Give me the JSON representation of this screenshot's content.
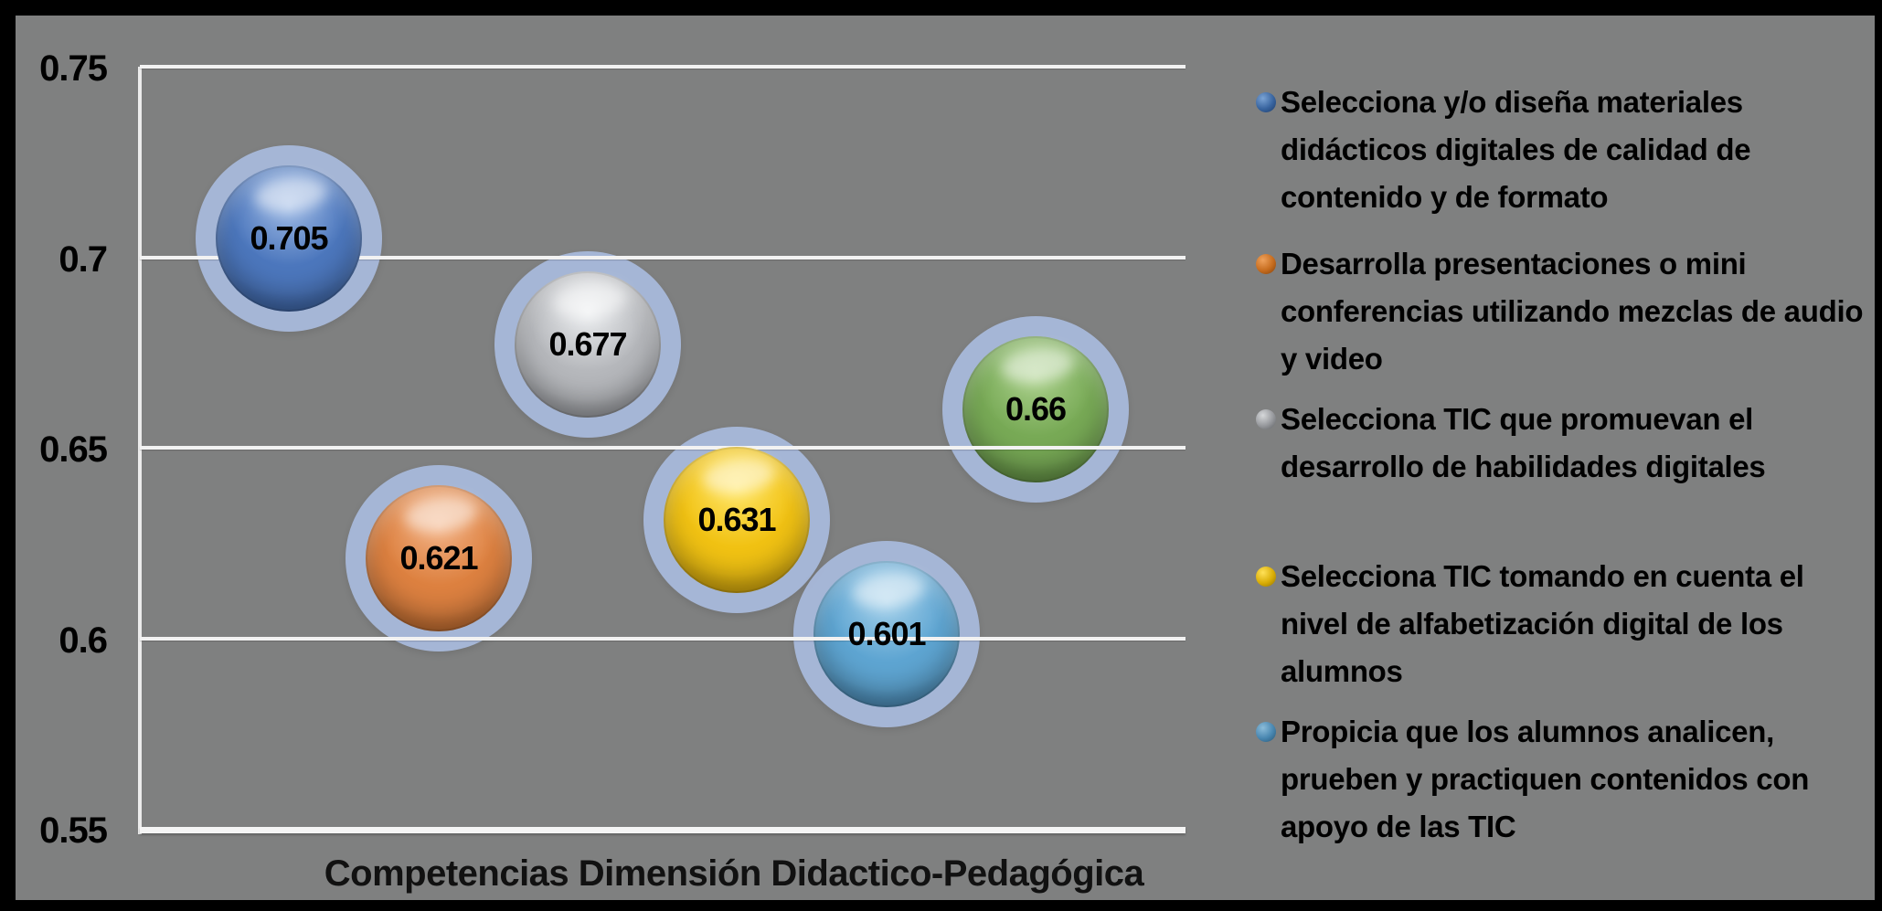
{
  "frame": {
    "background_color": "#7f8080",
    "border_color": "#000000",
    "gridline_color": "#f2f2f2",
    "halo_color": "#a8b8da"
  },
  "chart_data": {
    "type": "bubble",
    "title": "",
    "xlabel": "Competencias Dimensión Didactico-Pedagógica",
    "ylabel": "",
    "ylim": [
      0.55,
      0.75
    ],
    "grid": true,
    "legend_position": "right",
    "yticks": [
      {
        "label": "0.75",
        "value": 0.75
      },
      {
        "label": "0.7",
        "value": 0.7
      },
      {
        "label": "0.65",
        "value": 0.65
      },
      {
        "label": "0.6",
        "value": 0.6
      },
      {
        "label": "0.55",
        "value": 0.55
      }
    ],
    "series": [
      {
        "name": "Selecciona y/o diseña materiales didácticos digitales de calidad de contenido y de formato",
        "x": 1,
        "value": 0.705,
        "label": "0.705",
        "color": "#4c77bd",
        "color_light": "#9db9e4",
        "color_dark": "#2f5490"
      },
      {
        "name": "Desarrolla presentaciones o mini conferencias utilizando mezclas de audio y video",
        "x": 2,
        "value": 0.621,
        "label": "0.621",
        "color": "#dd8140",
        "color_light": "#f2b184",
        "color_dark": "#a8591f"
      },
      {
        "name": "Selecciona TIC que promuevan el desarrollo de habilidades digitales",
        "x": 3,
        "value": 0.677,
        "label": "0.677",
        "color": "#b6b8bc",
        "color_light": "#eceef0",
        "color_dark": "#828489"
      },
      {
        "name": "Selecciona TIC tomando en cuenta el nivel de alfabetización digital de los alumnos",
        "x": 4,
        "value": 0.631,
        "label": "0.631",
        "color": "#f1c213",
        "color_light": "#ffe566",
        "color_dark": "#bb8f06"
      },
      {
        "name": "Propicia que los alumnos analicen, prueben y practiquen contenidos con apoyo de las TIC",
        "x": 5,
        "value": 0.601,
        "label": "0.601",
        "color": "#5ea5d2",
        "color_light": "#a4d0ea",
        "color_dark": "#376f99"
      },
      {
        "name": "",
        "x": 6,
        "value": 0.66,
        "label": "0.66",
        "color": "#78aa56",
        "color_light": "#a9cf8a",
        "color_dark": "#4e7a32"
      }
    ]
  },
  "legend": {
    "items": [
      {
        "label": "Selecciona y/o diseña materiales didácticos digitales de calidad de contenido y de formato",
        "color": "#38649f",
        "color_light": "#7ba3d4",
        "color_dark": "#1d3a66"
      },
      {
        "label": "Desarrolla presentaciones o mini conferencias utilizando mezclas de audio y video",
        "color": "#c66c1e",
        "color_light": "#eea15c",
        "color_dark": "#7e3f0c"
      },
      {
        "label": "Selecciona TIC que promuevan el desarrollo de habilidades digitales",
        "color": "#96989c",
        "color_light": "#d6d8da",
        "color_dark": "#5b5d60"
      },
      {
        "label": "Selecciona TIC tomando en cuenta el nivel de alfabetización digital de los alumnos",
        "color": "#d9ad06",
        "color_light": "#ffe158",
        "color_dark": "#8f7002"
      },
      {
        "label": "Propicia que los  alumnos analicen, prueben y practiquen contenidos con apoyo de las TIC",
        "color": "#4886b0",
        "color_light": "#8cbcd9",
        "color_dark": "#275471"
      }
    ]
  }
}
